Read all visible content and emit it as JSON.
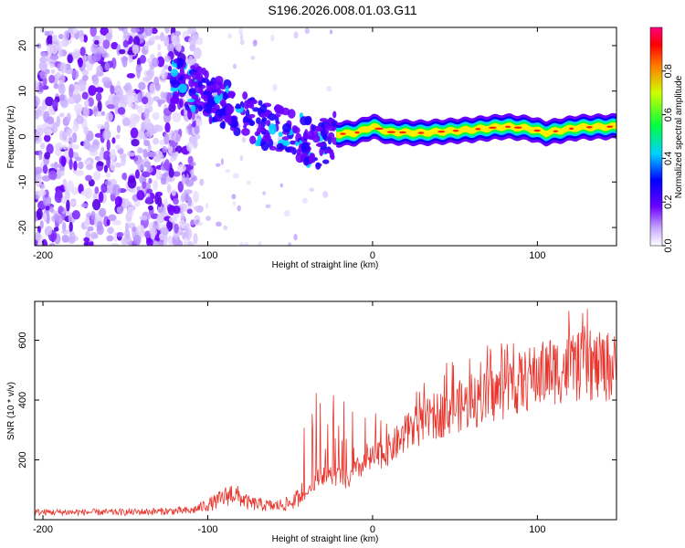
{
  "figure": {
    "title": "S196.2026.008.01.03.G11"
  },
  "chart_data": [
    {
      "type": "heatmap",
      "title": "",
      "xlabel": "Height of straight line (km)",
      "ylabel": "Frequency (Hz)",
      "xlim": [
        -205,
        148
      ],
      "ylim": [
        -24,
        24
      ],
      "xticks": [
        -200,
        -100,
        0,
        100
      ],
      "yticks": [
        -20,
        -10,
        0,
        10,
        20
      ],
      "colorbar": {
        "label": "Normalized spectral amplitude",
        "ticks": [
          0.0,
          0.2,
          0.4,
          0.6,
          0.8
        ],
        "range": [
          0,
          1
        ]
      },
      "ridge": {
        "description": "narrow high-amplitude band near 0-3 Hz",
        "x_range": [
          -22,
          148
        ],
        "frequency": [
          {
            "x": -22,
            "y": 0.5
          },
          {
            "x": -10,
            "y": 0.8
          },
          {
            "x": 0,
            "y": 2.2
          },
          {
            "x": 10,
            "y": 1.0
          },
          {
            "x": 30,
            "y": 0.8
          },
          {
            "x": 60,
            "y": 1.5
          },
          {
            "x": 80,
            "y": 2.2
          },
          {
            "x": 95,
            "y": 1.8
          },
          {
            "x": 105,
            "y": 0.8
          },
          {
            "x": 125,
            "y": 2.0
          },
          {
            "x": 148,
            "y": 2.2
          }
        ]
      },
      "scatter_region": {
        "x_range": [
          -205,
          -110
        ],
        "y_range": [
          -24,
          24
        ]
      },
      "transition_band": {
        "points": [
          {
            "x": -120,
            "y": 12
          },
          {
            "x": -100,
            "y": 9
          },
          {
            "x": -80,
            "y": 5
          },
          {
            "x": -60,
            "y": 2
          },
          {
            "x": -45,
            "y": 0
          },
          {
            "x": -35,
            "y": -2
          },
          {
            "x": -25,
            "y": 0
          }
        ]
      }
    },
    {
      "type": "line",
      "title": "",
      "xlabel": "Height of straight line (km)",
      "ylabel": "SNR (10 * v/v)",
      "xlim": [
        -205,
        148
      ],
      "ylim": [
        0,
        730
      ],
      "xticks": [
        -200,
        -100,
        0,
        100
      ],
      "yticks": [
        200,
        400,
        600
      ],
      "color": "#e8342c",
      "series": [
        {
          "name": "SNR",
          "envelope": [
            {
              "x": -205,
              "y": 25
            },
            {
              "x": -150,
              "y": 25
            },
            {
              "x": -110,
              "y": 30
            },
            {
              "x": -95,
              "y": 60
            },
            {
              "x": -85,
              "y": 90
            },
            {
              "x": -75,
              "y": 55
            },
            {
              "x": -60,
              "y": 45
            },
            {
              "x": -50,
              "y": 55
            },
            {
              "x": -40,
              "y": 90
            },
            {
              "x": -32,
              "y": 160
            },
            {
              "x": -25,
              "y": 140
            },
            {
              "x": -20,
              "y": 150
            },
            {
              "x": -15,
              "y": 130
            },
            {
              "x": -10,
              "y": 170
            },
            {
              "x": 0,
              "y": 210
            },
            {
              "x": 10,
              "y": 240
            },
            {
              "x": 20,
              "y": 290
            },
            {
              "x": 30,
              "y": 330
            },
            {
              "x": 40,
              "y": 360
            },
            {
              "x": 50,
              "y": 385
            },
            {
              "x": 60,
              "y": 400
            },
            {
              "x": 70,
              "y": 420
            },
            {
              "x": 80,
              "y": 445
            },
            {
              "x": 90,
              "y": 470
            },
            {
              "x": 100,
              "y": 495
            },
            {
              "x": 110,
              "y": 510
            },
            {
              "x": 120,
              "y": 520
            },
            {
              "x": 130,
              "y": 525
            },
            {
              "x": 148,
              "y": 520
            }
          ],
          "spike_range": [
            {
              "x": -40,
              "y": 400
            },
            {
              "x": -30,
              "y": 480
            },
            {
              "x": 0,
              "y": 350
            },
            {
              "x": 40,
              "y": 520
            },
            {
              "x": 80,
              "y": 610
            },
            {
              "x": 100,
              "y": 720
            },
            {
              "x": 148,
              "y": 700
            }
          ]
        }
      ]
    }
  ]
}
